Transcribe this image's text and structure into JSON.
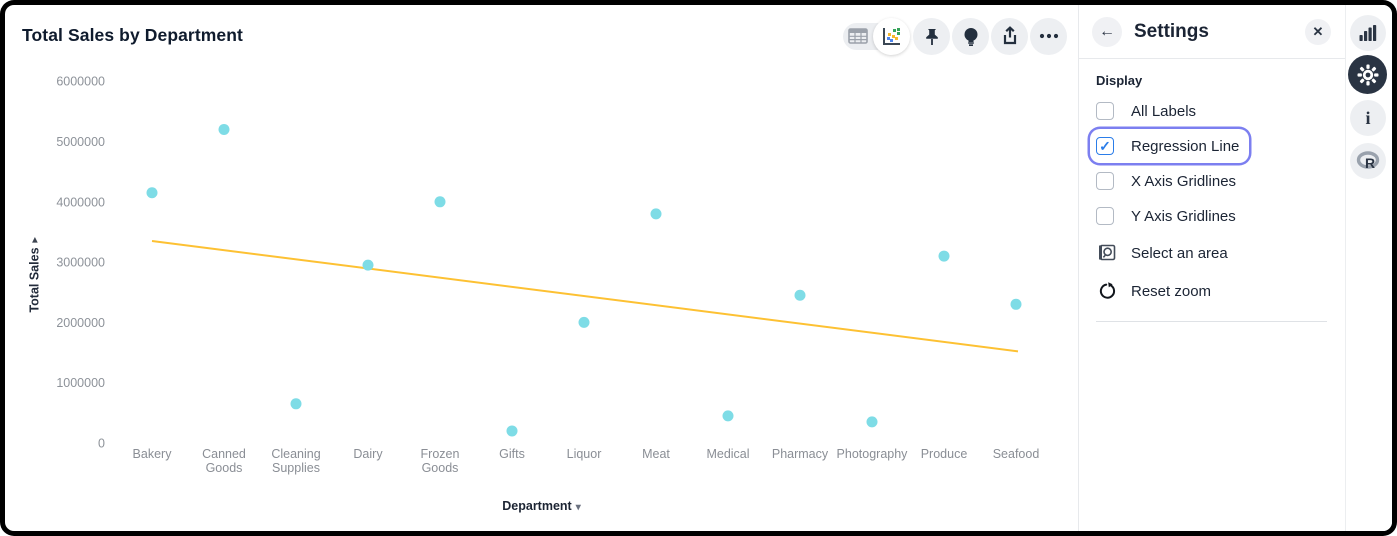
{
  "chart": {
    "title": "Total Sales by Department",
    "y_axis_title": "Total Sales",
    "x_axis_title": "Department"
  },
  "chart_data": {
    "type": "scatter",
    "title": "Total Sales by Department",
    "xlabel": "Department",
    "ylabel": "Total Sales",
    "categories": [
      "Bakery",
      "Canned Goods",
      "Cleaning Supplies",
      "Dairy",
      "Frozen Goods",
      "Gifts",
      "Liquor",
      "Meat",
      "Medical",
      "Pharmacy",
      "Photography",
      "Produce",
      "Seafood"
    ],
    "values": [
      4150000,
      5200000,
      650000,
      2950000,
      4000000,
      200000,
      2000000,
      3800000,
      450000,
      2450000,
      350000,
      3100000,
      2300000
    ],
    "ylim": [
      0,
      6000000
    ],
    "y_ticks": [
      0,
      1000000,
      2000000,
      3000000,
      4000000,
      5000000,
      6000000
    ],
    "grid": false,
    "legend": false,
    "marker_color": "#7EDCE6",
    "regression_line": {
      "show": true,
      "color": "#FDC133",
      "start_value": 3350000,
      "end_value": 1520000
    }
  },
  "toolbar": {
    "buttons": [
      "table-view",
      "chart-view",
      "pin",
      "insights",
      "export",
      "more-options"
    ],
    "active_view": "chart-view"
  },
  "settings_panel": {
    "title": "Settings",
    "section_label": "Display",
    "checkboxes": [
      {
        "label": "All Labels",
        "checked": false,
        "focused": false
      },
      {
        "label": "Regression Line",
        "checked": true,
        "focused": true
      },
      {
        "label": "X Axis Gridlines",
        "checked": false,
        "focused": false
      },
      {
        "label": "Y Axis Gridlines",
        "checked": false,
        "focused": false
      }
    ],
    "actions": [
      {
        "label": "Select an area"
      },
      {
        "label": "Reset zoom"
      }
    ]
  },
  "colors": {
    "accent_blue": "#2b7de9",
    "focus_ring": "#7c7ff0",
    "marker": "#7EDCE6",
    "regression": "#FDC133",
    "axis_text": "#8d9299",
    "dark_navy": "#2a3443"
  }
}
